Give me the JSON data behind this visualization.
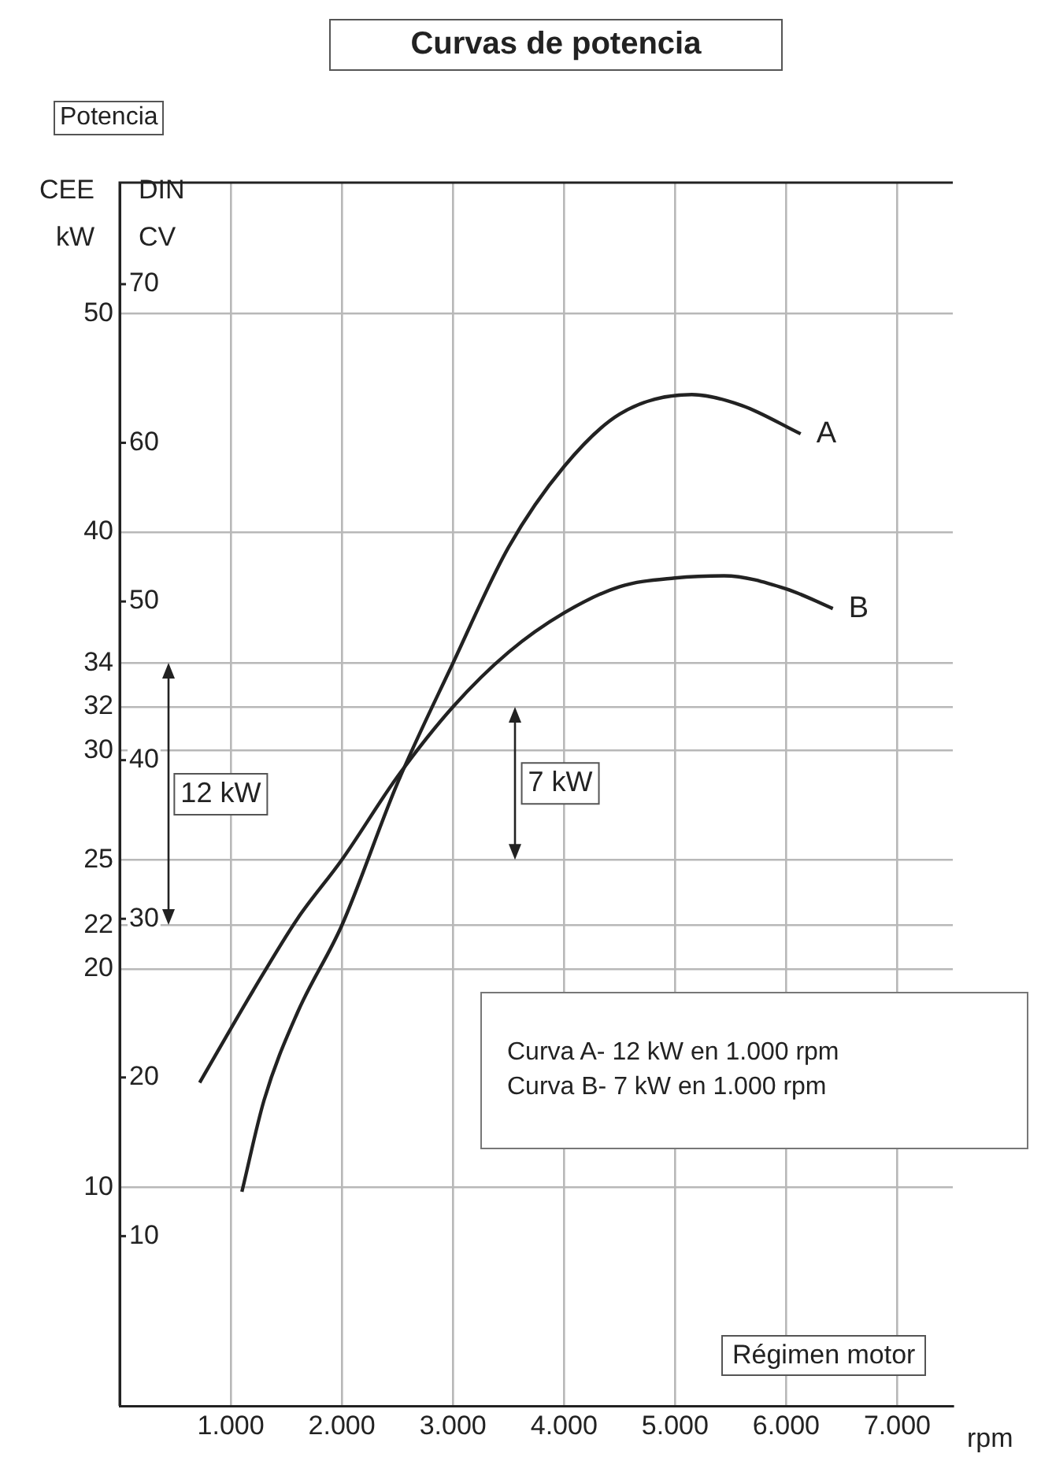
{
  "chart_data": {
    "type": "line",
    "title": "Curvas de potencia",
    "ylabel": "Potencia",
    "xlabel": "Régimen motor",
    "annotations": [
      "CEE kW",
      "DIN CV",
      "rpm",
      "Curva A- 12 kW en 1.000 rpm",
      "Curva B- 7 kW en 1.000 rpm",
      "12 kW",
      "7 kW"
    ],
    "xlim": [
      0,
      7500
    ],
    "xticks": [
      {
        "value": 1000,
        "label": "1.000"
      },
      {
        "value": 2000,
        "label": "2.000"
      },
      {
        "value": 3000,
        "label": "3.000"
      },
      {
        "value": 4000,
        "label": "4.000"
      },
      {
        "value": 5000,
        "label": "5.000"
      },
      {
        "value": 6000,
        "label": "6.000"
      },
      {
        "value": 7000,
        "label": "7.000"
      }
    ],
    "ylim": [
      0,
      56
    ],
    "yticks": [
      10,
      20,
      22,
      25,
      30,
      32,
      34,
      40,
      50
    ],
    "y2lim": [
      -0.7,
      76.4
    ],
    "y2ticks": [
      10,
      20,
      30,
      40,
      50,
      60,
      70
    ],
    "grid": true,
    "legend": false,
    "marker": "none",
    "line_style": "solid",
    "series": [
      {
        "name": "A",
        "color": "#222222",
        "x": [
          1100,
          1300,
          1600,
          2000,
          2500,
          3000,
          3500,
          4000,
          4500,
          5150,
          5600,
          6130
        ],
        "values": [
          9.8,
          14,
          18,
          22,
          28.5,
          34,
          39.3,
          43,
          45.4,
          46.3,
          45.8,
          44.5
        ]
      },
      {
        "name": "B",
        "color": "#222222",
        "x": [
          720,
          1200,
          1600,
          2000,
          2500,
          3000,
          3500,
          4000,
          4500,
          5000,
          5440,
          6000,
          6420
        ],
        "values": [
          14.8,
          19,
          22.3,
          25,
          28.8,
          32,
          34.5,
          36.3,
          37.5,
          37.9,
          38,
          37.4,
          36.5
        ]
      }
    ]
  }
}
